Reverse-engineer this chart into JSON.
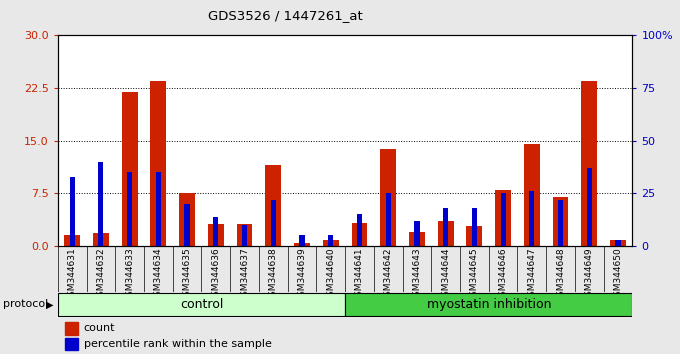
{
  "title": "GDS3526 / 1447261_at",
  "samples": [
    "GSM344631",
    "GSM344632",
    "GSM344633",
    "GSM344634",
    "GSM344635",
    "GSM344636",
    "GSM344637",
    "GSM344638",
    "GSM344639",
    "GSM344640",
    "GSM344641",
    "GSM344642",
    "GSM344643",
    "GSM344644",
    "GSM344645",
    "GSM344646",
    "GSM344647",
    "GSM344648",
    "GSM344649",
    "GSM344650"
  ],
  "counts": [
    1.5,
    1.8,
    22.0,
    23.5,
    7.5,
    3.2,
    3.2,
    11.5,
    0.5,
    0.9,
    3.3,
    13.8,
    2.0,
    3.5,
    2.8,
    8.0,
    14.5,
    7.0,
    23.5,
    0.8
  ],
  "percentile_ranks": [
    33,
    40,
    35,
    35,
    20,
    14,
    10,
    22,
    5,
    5,
    15,
    25,
    12,
    18,
    18,
    25,
    26,
    22,
    37,
    3
  ],
  "groups": {
    "control": [
      0,
      9
    ],
    "myostatin_inhibition": [
      10,
      19
    ]
  },
  "control_color": "#ccffcc",
  "myostatin_color": "#44cc44",
  "bar_color_red": "#cc2200",
  "bar_color_blue": "#0000cc",
  "ylim_left": [
    0,
    30
  ],
  "ylim_right": [
    0,
    100
  ],
  "yticks_left": [
    0,
    7.5,
    15,
    22.5,
    30
  ],
  "yticks_right": [
    0,
    25,
    50,
    75,
    100
  ],
  "ytick_labels_right": [
    "0",
    "25",
    "50",
    "75",
    "100%"
  ],
  "plot_bg": "#ffffff",
  "xtick_bg": "#cccccc",
  "outer_bg": "#e8e8e8",
  "legend_count": "count",
  "legend_percentile": "percentile rank within the sample",
  "protocol_label": "protocol",
  "control_label": "control",
  "myostatin_label": "myostatin inhibition"
}
